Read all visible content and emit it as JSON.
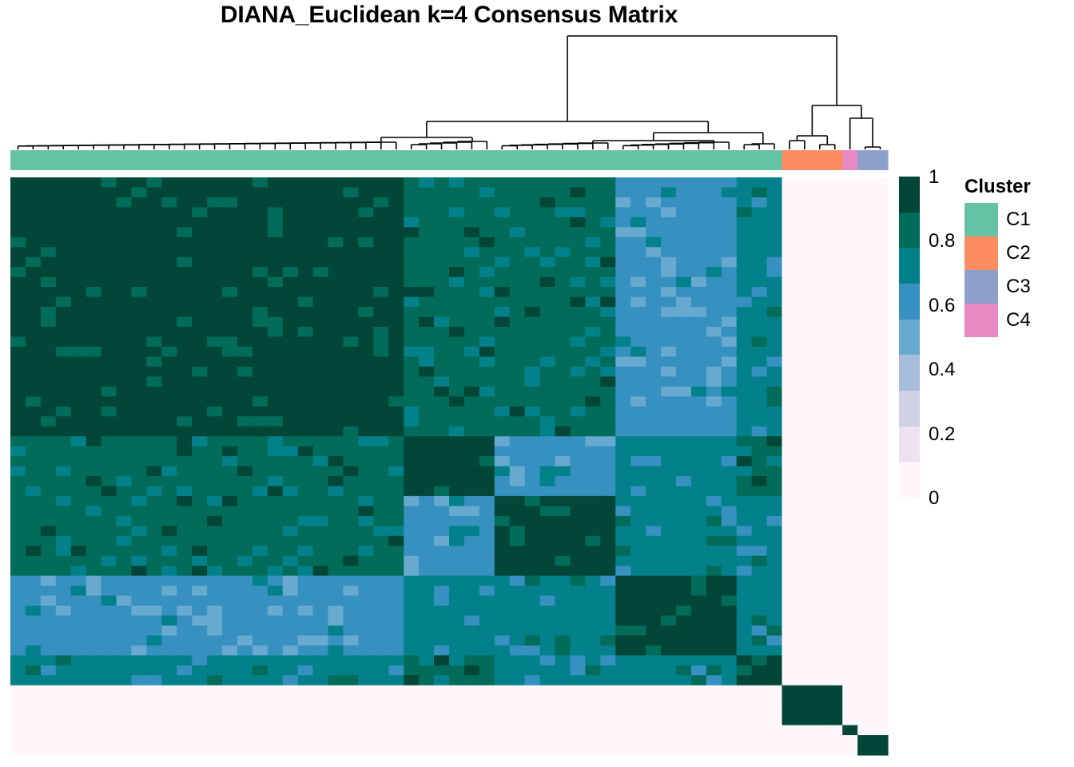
{
  "chart_data": {
    "type": "heatmap",
    "title": "DIANA_Euclidean k=4 Consensus Matrix",
    "n_samples": 58,
    "cluster_sizes": [
      {
        "name": "C1",
        "size": 51
      },
      {
        "name": "C2",
        "size": 4
      },
      {
        "name": "C4",
        "size": 1
      },
      {
        "name": "C3",
        "size": 2
      }
    ],
    "block_values": [
      [
        1.0,
        0.88,
        0.82,
        0.65,
        0.8
      ],
      [
        0.88,
        1.0,
        0.68,
        0.78,
        0.85
      ],
      [
        0.82,
        0.68,
        1.0,
        0.75,
        0.7
      ],
      [
        0.65,
        0.78,
        0.75,
        1.0,
        0.8
      ],
      [
        0.8,
        0.85,
        0.7,
        0.8,
        1.0
      ]
    ],
    "off_cluster_value": 0.0,
    "colorbar": {
      "min": 0,
      "max": 1,
      "ticks": [
        "0",
        "0.2",
        "0.4",
        "0.6",
        "0.8",
        "1"
      ],
      "colors": [
        "#FFF7FB",
        "#ECE2F0",
        "#D0D1E6",
        "#A6BDDB",
        "#67A9CF",
        "#3690C0",
        "#02818A",
        "#016C59",
        "#014636"
      ]
    },
    "legend": {
      "title": "Cluster",
      "items": [
        {
          "label": "C1",
          "color": "#66C2A5"
        },
        {
          "label": "C2",
          "color": "#FC8D62"
        },
        {
          "label": "C3",
          "color": "#8DA0CB"
        },
        {
          "label": "C4",
          "color": "#E78AC3"
        }
      ]
    }
  }
}
